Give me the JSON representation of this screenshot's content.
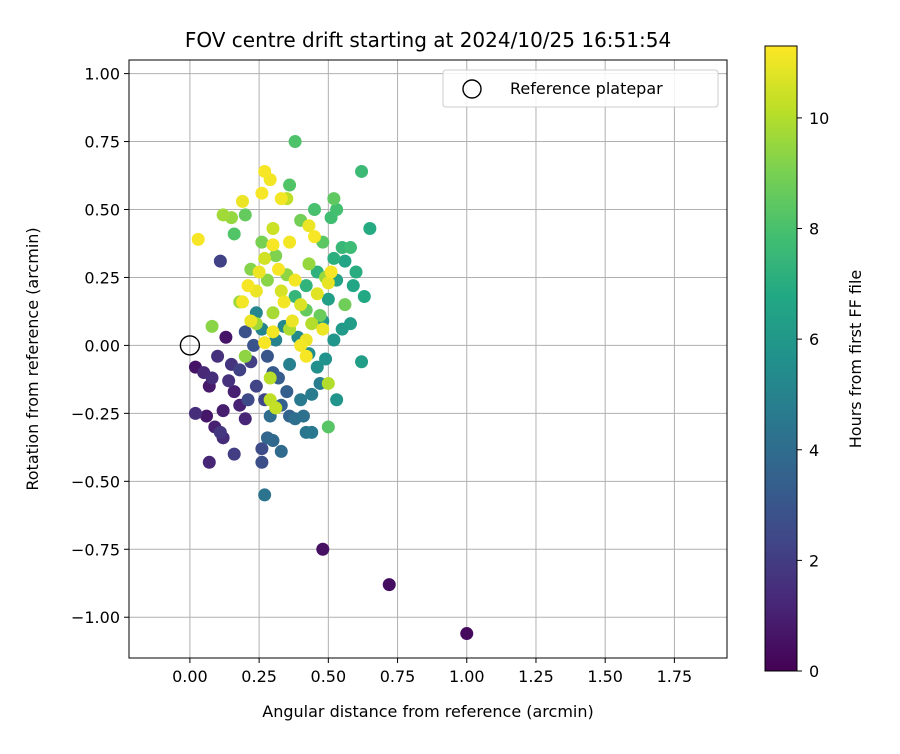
{
  "chart_data": {
    "type": "scatter",
    "title": "FOV centre drift starting at 2024/10/25 16:51:54",
    "xlabel": "Angular distance from reference (arcmin)",
    "ylabel": "Rotation from reference (arcmin)",
    "xlim": [
      -0.22,
      1.94
    ],
    "ylim": [
      -1.15,
      1.05
    ],
    "x_ticks": [
      0.0,
      0.25,
      0.5,
      0.75,
      1.0,
      1.25,
      1.5,
      1.75
    ],
    "x_tick_labels": [
      "0.00",
      "0.25",
      "0.50",
      "0.75",
      "1.00",
      "1.25",
      "1.50",
      "1.75"
    ],
    "y_ticks": [
      1.0,
      0.75,
      0.5,
      0.25,
      0.0,
      -0.25,
      -0.5,
      -0.75,
      -1.0
    ],
    "y_tick_labels": [
      "1.00",
      "0.75",
      "0.50",
      "0.25",
      "0.00",
      "−0.25",
      "−0.50",
      "−0.75",
      "−1.00"
    ],
    "grid": true,
    "legend": {
      "location": "upper right",
      "entries": [
        {
          "label": "Reference platepar",
          "marker": "open-circle"
        }
      ]
    },
    "reference_point": {
      "x": 0.0,
      "y": 0.0
    },
    "colorbar": {
      "label": "Hours from first FF file",
      "colormap": "viridis",
      "range": [
        0,
        11.3
      ],
      "ticks": [
        0,
        2,
        4,
        6,
        8,
        10
      ],
      "tick_labels": [
        "0",
        "2",
        "4",
        "6",
        "8",
        "10"
      ]
    },
    "points": [
      {
        "x": 1.0,
        "y": -1.06,
        "h": 0.3
      },
      {
        "x": 0.72,
        "y": -0.88,
        "h": 0.4
      },
      {
        "x": 0.48,
        "y": -0.75,
        "h": 0.5
      },
      {
        "x": 0.02,
        "y": -0.08,
        "h": 0.6
      },
      {
        "x": 0.07,
        "y": -0.15,
        "h": 0.8
      },
      {
        "x": 0.06,
        "y": -0.26,
        "h": 0.7
      },
      {
        "x": 0.09,
        "y": -0.3,
        "h": 1.0
      },
      {
        "x": 0.07,
        "y": -0.43,
        "h": 1.2
      },
      {
        "x": 0.12,
        "y": -0.24,
        "h": 0.9
      },
      {
        "x": 0.13,
        "y": 0.03,
        "h": 0.6
      },
      {
        "x": 0.16,
        "y": -0.17,
        "h": 1.0
      },
      {
        "x": 0.18,
        "y": -0.22,
        "h": 1.1
      },
      {
        "x": 0.2,
        "y": -0.27,
        "h": 1.2
      },
      {
        "x": 0.12,
        "y": -0.34,
        "h": 1.4
      },
      {
        "x": 0.02,
        "y": -0.25,
        "h": 1.5
      },
      {
        "x": 0.05,
        "y": -0.1,
        "h": 1.3
      },
      {
        "x": 0.1,
        "y": -0.04,
        "h": 1.6
      },
      {
        "x": 0.08,
        "y": -0.12,
        "h": 1.5
      },
      {
        "x": 0.15,
        "y": -0.07,
        "h": 1.7
      },
      {
        "x": 0.14,
        "y": -0.13,
        "h": 1.6
      },
      {
        "x": 0.11,
        "y": -0.32,
        "h": 1.8
      },
      {
        "x": 0.16,
        "y": -0.4,
        "h": 2.0
      },
      {
        "x": 0.22,
        "y": -0.06,
        "h": 2.1
      },
      {
        "x": 0.18,
        "y": -0.09,
        "h": 2.2
      },
      {
        "x": 0.24,
        "y": -0.15,
        "h": 2.3
      },
      {
        "x": 0.27,
        "y": -0.2,
        "h": 2.4
      },
      {
        "x": 0.21,
        "y": -0.2,
        "h": 2.5
      },
      {
        "x": 0.26,
        "y": -0.38,
        "h": 2.6
      },
      {
        "x": 0.26,
        "y": -0.43,
        "h": 2.7
      },
      {
        "x": 0.11,
        "y": 0.31,
        "h": 2.2
      },
      {
        "x": 0.2,
        "y": 0.05,
        "h": 2.8
      },
      {
        "x": 0.23,
        "y": 0.0,
        "h": 2.9
      },
      {
        "x": 0.28,
        "y": -0.04,
        "h": 3.0
      },
      {
        "x": 0.3,
        "y": -0.1,
        "h": 3.2
      },
      {
        "x": 0.32,
        "y": -0.12,
        "h": 3.3
      },
      {
        "x": 0.35,
        "y": -0.17,
        "h": 3.4
      },
      {
        "x": 0.33,
        "y": -0.22,
        "h": 3.5
      },
      {
        "x": 0.36,
        "y": -0.26,
        "h": 3.6
      },
      {
        "x": 0.28,
        "y": -0.34,
        "h": 3.7
      },
      {
        "x": 0.3,
        "y": -0.35,
        "h": 3.8
      },
      {
        "x": 0.33,
        "y": -0.39,
        "h": 3.9
      },
      {
        "x": 0.27,
        "y": -0.55,
        "h": 4.3
      },
      {
        "x": 0.29,
        "y": -0.26,
        "h": 4.0
      },
      {
        "x": 0.38,
        "y": -0.27,
        "h": 4.1
      },
      {
        "x": 0.41,
        "y": -0.26,
        "h": 4.2
      },
      {
        "x": 0.42,
        "y": -0.32,
        "h": 4.4
      },
      {
        "x": 0.44,
        "y": -0.32,
        "h": 4.5
      },
      {
        "x": 0.4,
        "y": -0.2,
        "h": 4.6
      },
      {
        "x": 0.44,
        "y": -0.18,
        "h": 4.7
      },
      {
        "x": 0.47,
        "y": -0.14,
        "h": 4.8
      },
      {
        "x": 0.36,
        "y": -0.07,
        "h": 4.9
      },
      {
        "x": 0.31,
        "y": 0.02,
        "h": 5.0
      },
      {
        "x": 0.26,
        "y": 0.06,
        "h": 5.1
      },
      {
        "x": 0.24,
        "y": 0.12,
        "h": 5.2
      },
      {
        "x": 0.34,
        "y": 0.07,
        "h": 5.3
      },
      {
        "x": 0.39,
        "y": 0.03,
        "h": 5.4
      },
      {
        "x": 0.43,
        "y": -0.03,
        "h": 5.5
      },
      {
        "x": 0.46,
        "y": -0.08,
        "h": 5.6
      },
      {
        "x": 0.49,
        "y": -0.05,
        "h": 5.7
      },
      {
        "x": 0.53,
        "y": -0.2,
        "h": 5.8
      },
      {
        "x": 0.52,
        "y": 0.02,
        "h": 5.9
      },
      {
        "x": 0.48,
        "y": 0.09,
        "h": 6.0
      },
      {
        "x": 0.55,
        "y": 0.06,
        "h": 6.1
      },
      {
        "x": 0.58,
        "y": 0.08,
        "h": 6.2
      },
      {
        "x": 0.62,
        "y": -0.06,
        "h": 6.3
      },
      {
        "x": 0.5,
        "y": 0.17,
        "h": 6.4
      },
      {
        "x": 0.53,
        "y": 0.24,
        "h": 6.5
      },
      {
        "x": 0.56,
        "y": 0.31,
        "h": 6.6
      },
      {
        "x": 0.59,
        "y": 0.22,
        "h": 6.7
      },
      {
        "x": 0.63,
        "y": 0.18,
        "h": 6.8
      },
      {
        "x": 0.65,
        "y": 0.43,
        "h": 6.9
      },
      {
        "x": 0.6,
        "y": 0.27,
        "h": 7.0
      },
      {
        "x": 0.52,
        "y": 0.32,
        "h": 7.1
      },
      {
        "x": 0.46,
        "y": 0.27,
        "h": 7.2
      },
      {
        "x": 0.42,
        "y": 0.22,
        "h": 7.3
      },
      {
        "x": 0.38,
        "y": 0.18,
        "h": 7.4
      },
      {
        "x": 0.55,
        "y": 0.36,
        "h": 7.5
      },
      {
        "x": 0.62,
        "y": 0.64,
        "h": 7.6
      },
      {
        "x": 0.58,
        "y": 0.36,
        "h": 7.7
      },
      {
        "x": 0.51,
        "y": 0.47,
        "h": 7.8
      },
      {
        "x": 0.53,
        "y": 0.5,
        "h": 7.9
      },
      {
        "x": 0.45,
        "y": 0.5,
        "h": 8.0
      },
      {
        "x": 0.38,
        "y": 0.75,
        "h": 8.1
      },
      {
        "x": 0.36,
        "y": 0.59,
        "h": 8.2
      },
      {
        "x": 0.5,
        "y": -0.3,
        "h": 8.3
      },
      {
        "x": 0.48,
        "y": 0.38,
        "h": 8.4
      },
      {
        "x": 0.52,
        "y": 0.54,
        "h": 8.5
      },
      {
        "x": 0.42,
        "y": 0.13,
        "h": 8.6
      },
      {
        "x": 0.47,
        "y": 0.11,
        "h": 8.7
      },
      {
        "x": 0.56,
        "y": 0.15,
        "h": 8.8
      },
      {
        "x": 0.4,
        "y": 0.46,
        "h": 8.9
      },
      {
        "x": 0.16,
        "y": 0.41,
        "h": 8.2
      },
      {
        "x": 0.2,
        "y": 0.48,
        "h": 8.6
      },
      {
        "x": 0.26,
        "y": 0.38,
        "h": 9.0
      },
      {
        "x": 0.31,
        "y": 0.33,
        "h": 9.1
      },
      {
        "x": 0.22,
        "y": 0.28,
        "h": 9.2
      },
      {
        "x": 0.28,
        "y": 0.24,
        "h": 9.3
      },
      {
        "x": 0.35,
        "y": 0.26,
        "h": 9.4
      },
      {
        "x": 0.43,
        "y": 0.3,
        "h": 9.5
      },
      {
        "x": 0.49,
        "y": 0.25,
        "h": 9.6
      },
      {
        "x": 0.15,
        "y": 0.47,
        "h": 9.5
      },
      {
        "x": 0.12,
        "y": 0.48,
        "h": 9.7
      },
      {
        "x": 0.08,
        "y": 0.07,
        "h": 9.3
      },
      {
        "x": 0.2,
        "y": -0.04,
        "h": 9.4
      },
      {
        "x": 0.18,
        "y": 0.16,
        "h": 9.6
      },
      {
        "x": 0.24,
        "y": 0.08,
        "h": 9.7
      },
      {
        "x": 0.3,
        "y": 0.12,
        "h": 9.8
      },
      {
        "x": 0.36,
        "y": 0.06,
        "h": 9.9
      },
      {
        "x": 0.44,
        "y": 0.08,
        "h": 10.0
      },
      {
        "x": 0.5,
        "y": -0.14,
        "h": 10.0
      },
      {
        "x": 0.29,
        "y": -0.12,
        "h": 10.1
      },
      {
        "x": 0.29,
        "y": -0.2,
        "h": 10.2
      },
      {
        "x": 0.31,
        "y": -0.23,
        "h": 10.3
      },
      {
        "x": 0.35,
        "y": 0.54,
        "h": 10.2
      },
      {
        "x": 0.3,
        "y": 0.43,
        "h": 10.4
      },
      {
        "x": 0.27,
        "y": 0.32,
        "h": 10.5
      },
      {
        "x": 0.33,
        "y": 0.2,
        "h": 10.6
      },
      {
        "x": 0.4,
        "y": 0.15,
        "h": 10.7
      },
      {
        "x": 0.46,
        "y": 0.19,
        "h": 10.8
      },
      {
        "x": 0.5,
        "y": 0.23,
        "h": 10.9
      },
      {
        "x": 0.42,
        "y": 0.02,
        "h": 11.0
      },
      {
        "x": 0.3,
        "y": 0.05,
        "h": 11.1
      },
      {
        "x": 0.37,
        "y": 0.09,
        "h": 11.0
      },
      {
        "x": 0.27,
        "y": 0.64,
        "h": 11.2
      },
      {
        "x": 0.29,
        "y": 0.61,
        "h": 11.1
      },
      {
        "x": 0.26,
        "y": 0.56,
        "h": 11.2
      },
      {
        "x": 0.19,
        "y": 0.53,
        "h": 11.0
      },
      {
        "x": 0.33,
        "y": 0.54,
        "h": 11.1
      },
      {
        "x": 0.03,
        "y": 0.39,
        "h": 11.2
      },
      {
        "x": 0.19,
        "y": 0.16,
        "h": 11.1
      },
      {
        "x": 0.24,
        "y": 0.2,
        "h": 11.0
      },
      {
        "x": 0.32,
        "y": 0.28,
        "h": 11.2
      },
      {
        "x": 0.38,
        "y": 0.24,
        "h": 11.1
      },
      {
        "x": 0.43,
        "y": 0.44,
        "h": 11.0
      },
      {
        "x": 0.45,
        "y": 0.4,
        "h": 11.2
      },
      {
        "x": 0.36,
        "y": 0.38,
        "h": 11.1
      },
      {
        "x": 0.21,
        "y": 0.22,
        "h": 11.2
      },
      {
        "x": 0.22,
        "y": 0.09,
        "h": 11.0
      },
      {
        "x": 0.27,
        "y": 0.01,
        "h": 11.2
      },
      {
        "x": 0.4,
        "y": 0.0,
        "h": 11.1
      },
      {
        "x": 0.42,
        "y": -0.04,
        "h": 11.2
      },
      {
        "x": 0.48,
        "y": 0.06,
        "h": 11.0
      },
      {
        "x": 0.51,
        "y": 0.27,
        "h": 11.2
      },
      {
        "x": 0.34,
        "y": 0.16,
        "h": 11.1
      },
      {
        "x": 0.25,
        "y": 0.27,
        "h": 11.0
      },
      {
        "x": 0.3,
        "y": 0.37,
        "h": 11.2
      }
    ],
    "colors": {
      "axes": "#000000",
      "grid": "#b0b0b0",
      "reference_marker": "#000000",
      "legend_border": "#cccccc"
    }
  }
}
